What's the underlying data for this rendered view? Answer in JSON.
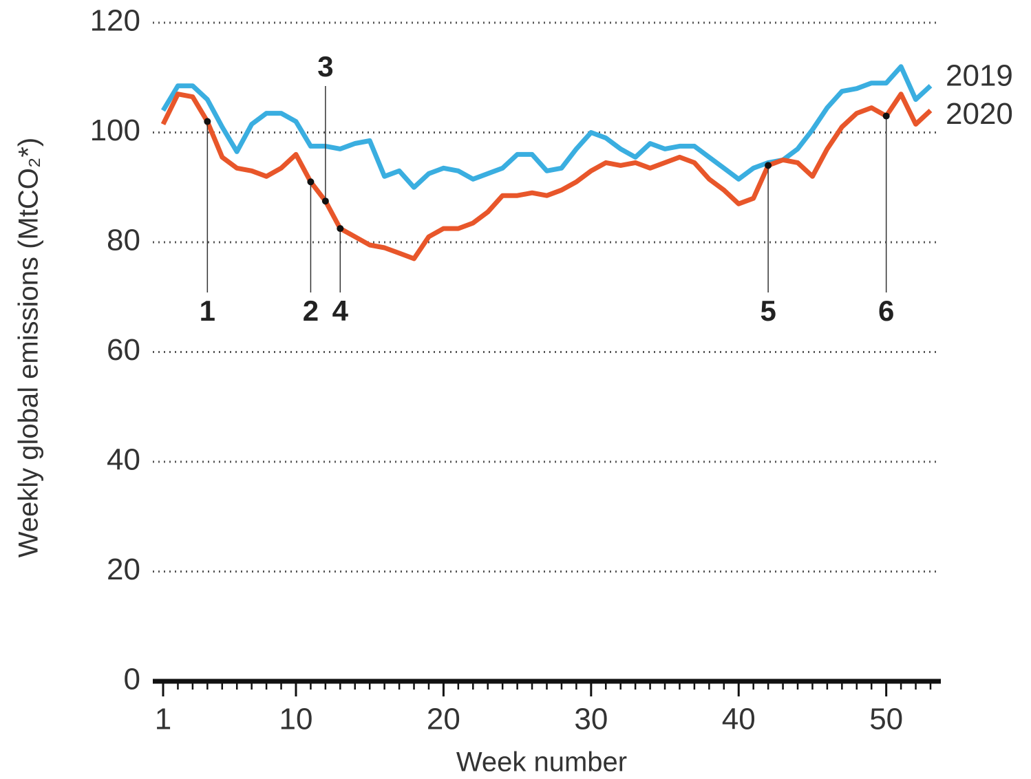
{
  "chart_data": {
    "type": "line",
    "x_label": "Week number",
    "y_label": "Weekly global emissions (MtCO₂*)",
    "x": [
      1,
      2,
      3,
      4,
      5,
      6,
      7,
      8,
      9,
      10,
      11,
      12,
      13,
      14,
      15,
      16,
      17,
      18,
      19,
      20,
      21,
      22,
      23,
      24,
      25,
      26,
      27,
      28,
      29,
      30,
      31,
      32,
      33,
      34,
      35,
      36,
      37,
      38,
      39,
      40,
      41,
      42,
      43,
      44,
      45,
      46,
      47,
      48,
      49,
      50,
      51,
      52,
      53
    ],
    "series": [
      {
        "name": "2019",
        "color": "#3aaee0",
        "values": [
          104,
          108.5,
          108.5,
          106,
          101,
          96.5,
          101.5,
          103.5,
          103.5,
          102,
          97.5,
          97.5,
          97,
          98,
          98.5,
          92,
          93,
          90,
          92.5,
          93.5,
          93,
          91.5,
          92.5,
          93.5,
          96,
          96,
          93,
          93.5,
          97,
          100,
          99,
          97,
          95.5,
          98,
          97,
          97.5,
          97.5,
          95.5,
          93.5,
          91.5,
          93.5,
          94.5,
          95,
          97,
          100.5,
          104.5,
          107.5,
          108,
          109,
          109,
          112,
          106,
          108.5
        ]
      },
      {
        "name": "2020",
        "color": "#e8562a",
        "values": [
          101.5,
          107,
          106.5,
          102,
          95.5,
          93.5,
          93,
          92,
          93.5,
          96,
          91,
          87.5,
          82.5,
          81,
          79.5,
          79,
          78,
          77,
          81,
          82.5,
          82.5,
          83.5,
          85.5,
          88.5,
          88.5,
          89,
          88.5,
          89.5,
          91,
          93,
          94.5,
          94,
          94.5,
          93.5,
          94.5,
          95.5,
          94.5,
          91.5,
          89.5,
          87,
          88,
          94,
          95,
          94.5,
          92,
          97,
          101,
          103.5,
          104.5,
          103,
          107,
          101.5,
          104
        ]
      }
    ],
    "annotations": [
      {
        "label": "1",
        "week": 4,
        "position": "below"
      },
      {
        "label": "2",
        "week": 11,
        "position": "below"
      },
      {
        "label": "3",
        "week": 12,
        "position": "above"
      },
      {
        "label": "4",
        "week": 13,
        "position": "below"
      },
      {
        "label": "5",
        "week": 42,
        "position": "below"
      },
      {
        "label": "6",
        "week": 50,
        "position": "below"
      }
    ],
    "xlim": [
      0.3,
      53.7
    ],
    "ylim": [
      0,
      120
    ],
    "xticks": [
      1,
      10,
      20,
      30,
      40,
      50
    ],
    "yticks": [
      0,
      20,
      40,
      60,
      80,
      100,
      120
    ],
    "grid": true
  }
}
